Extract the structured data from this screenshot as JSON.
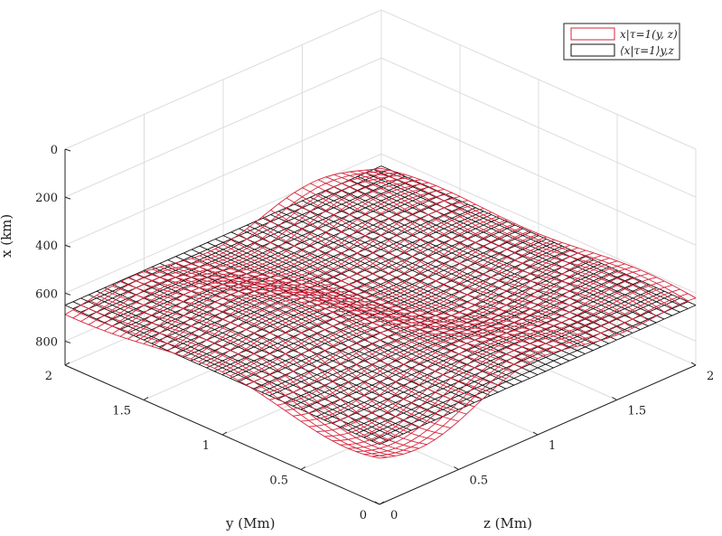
{
  "chart_data": {
    "type": "surface",
    "title": "",
    "axes": {
      "x": {
        "label": "x (km)",
        "reversed": true,
        "range": [
          900,
          0
        ],
        "ticks": [
          0,
          200,
          400,
          600,
          800
        ]
      },
      "y": {
        "label": "y (Mm)",
        "range": [
          0,
          2
        ],
        "ticks": [
          0,
          0.5,
          1,
          1.5,
          2
        ]
      },
      "z": {
        "label": "z (Mm)",
        "range": [
          0,
          2
        ],
        "ticks": [
          0,
          0.5,
          1,
          1.5,
          2
        ]
      }
    },
    "grid": true,
    "legend_position": "top-right",
    "series": [
      {
        "name": "x|τ=1(y, z)",
        "color": "#d7263d",
        "kind": "corrugated-surface"
      },
      {
        "name": "⟨x|τ=1⟩y,z",
        "color": "#111111",
        "kind": "flat-mean-surface",
        "mean_depth": 650
      }
    ],
    "surface_samples": {
      "y": [
        0,
        0.5,
        1,
        1.5,
        2
      ],
      "z": [
        0,
        0.5,
        1,
        1.5,
        2
      ],
      "mean_depth_km": 650,
      "depth_range_km": [
        550,
        750
      ]
    }
  }
}
